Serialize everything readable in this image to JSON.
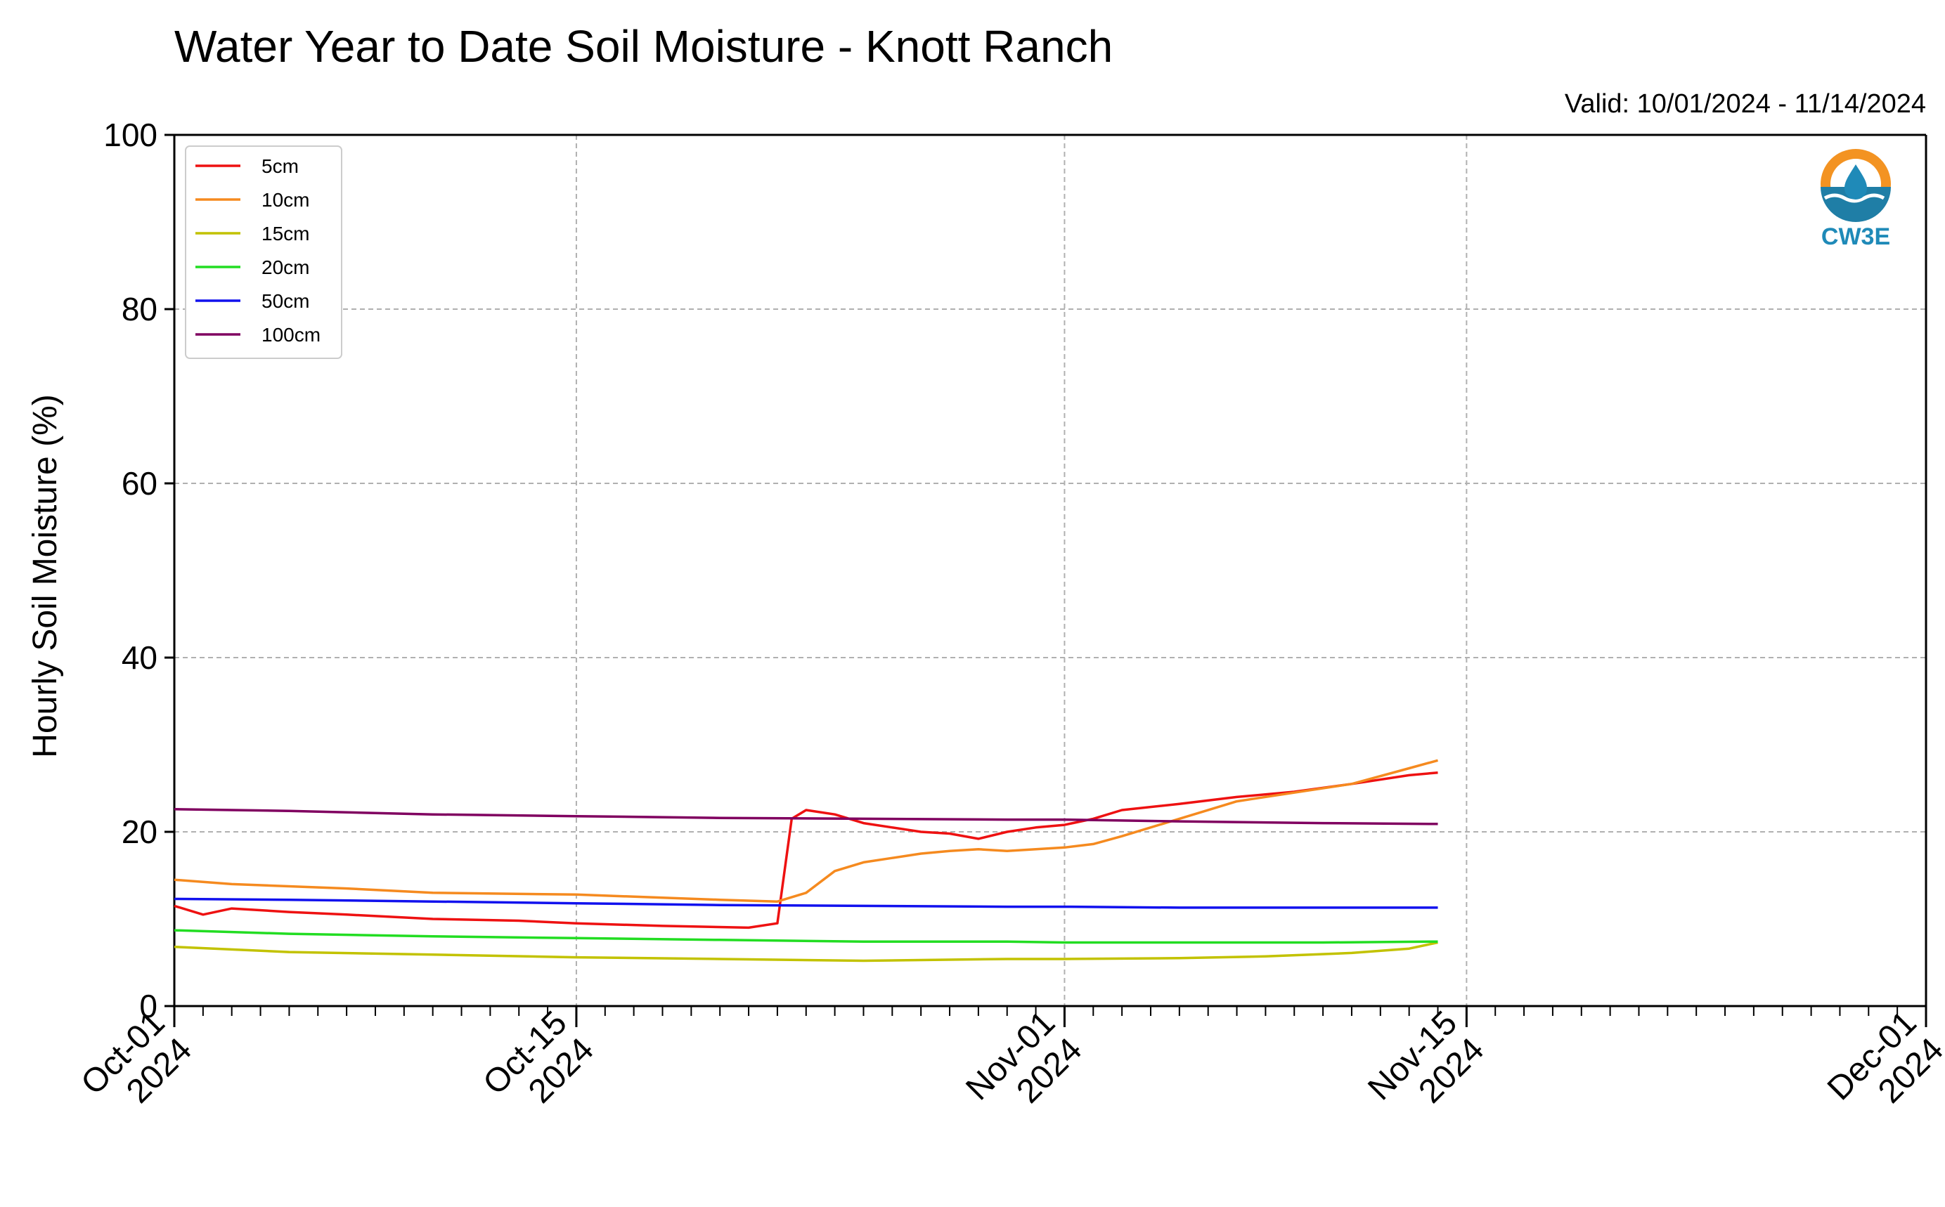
{
  "title": "Water Year to Date Soil Moisture - Knott Ranch",
  "valid_text": "Valid: 10/01/2024 - 11/14/2024",
  "logo_text": "CW3E",
  "chart_data": {
    "type": "line",
    "title": "Water Year to Date Soil Moisture - Knott Ranch",
    "ylabel": "Hourly Soil Moisture (%)",
    "xlabel": "",
    "xlim": [
      "2024-10-01",
      "2024-12-01"
    ],
    "ylim": [
      0,
      100
    ],
    "yticks": [
      0,
      20,
      40,
      60,
      80,
      100
    ],
    "xticks": [
      {
        "date": "2024-10-01",
        "label1": "Oct-01",
        "label2": "2024"
      },
      {
        "date": "2024-10-15",
        "label1": "Oct-15",
        "label2": "2024"
      },
      {
        "date": "2024-11-01",
        "label1": "Nov-01",
        "label2": "2024"
      },
      {
        "date": "2024-11-15",
        "label1": "Nov-15",
        "label2": "2024"
      },
      {
        "date": "2024-12-01",
        "label1": "Dec-01",
        "label2": "2024"
      }
    ],
    "grid": true,
    "legend_position": "top-left",
    "series": [
      {
        "name": "5cm",
        "color": "#ee1111",
        "x": [
          "2024-10-01",
          "2024-10-02",
          "2024-10-03",
          "2024-10-05",
          "2024-10-07",
          "2024-10-10",
          "2024-10-13",
          "2024-10-15",
          "2024-10-18",
          "2024-10-21",
          "2024-10-22",
          "2024-10-22T12:00",
          "2024-10-23",
          "2024-10-24",
          "2024-10-25",
          "2024-10-26",
          "2024-10-27",
          "2024-10-28",
          "2024-10-29",
          "2024-10-30",
          "2024-10-31",
          "2024-11-01",
          "2024-11-02",
          "2024-11-03",
          "2024-11-05",
          "2024-11-07",
          "2024-11-09",
          "2024-11-11",
          "2024-11-13",
          "2024-11-14"
        ],
        "y": [
          11.5,
          10.5,
          11.2,
          10.8,
          10.5,
          10.0,
          9.8,
          9.5,
          9.2,
          9.0,
          9.5,
          21.5,
          22.5,
          22.0,
          21.0,
          20.5,
          20.0,
          19.8,
          19.2,
          20.0,
          20.5,
          20.8,
          21.5,
          22.5,
          23.2,
          24.0,
          24.6,
          25.5,
          26.5,
          26.8
        ]
      },
      {
        "name": "10cm",
        "color": "#f58a1f",
        "x": [
          "2024-10-01",
          "2024-10-03",
          "2024-10-07",
          "2024-10-10",
          "2024-10-15",
          "2024-10-20",
          "2024-10-22",
          "2024-10-23",
          "2024-10-24",
          "2024-10-25",
          "2024-10-26",
          "2024-10-27",
          "2024-10-28",
          "2024-10-29",
          "2024-10-30",
          "2024-10-31",
          "2024-11-01",
          "2024-11-02",
          "2024-11-03",
          "2024-11-05",
          "2024-11-07",
          "2024-11-09",
          "2024-11-11",
          "2024-11-13",
          "2024-11-14"
        ],
        "y": [
          14.5,
          14.0,
          13.5,
          13.0,
          12.8,
          12.2,
          12.0,
          13.0,
          15.5,
          16.5,
          17.0,
          17.5,
          17.8,
          18.0,
          17.8,
          18.0,
          18.2,
          18.6,
          19.5,
          21.5,
          23.5,
          24.5,
          25.5,
          27.3,
          28.2
        ]
      },
      {
        "name": "15cm",
        "color": "#c2c200",
        "x": [
          "2024-10-01",
          "2024-10-05",
          "2024-10-10",
          "2024-10-15",
          "2024-10-20",
          "2024-10-25",
          "2024-10-30",
          "2024-11-01",
          "2024-11-05",
          "2024-11-08",
          "2024-11-11",
          "2024-11-13",
          "2024-11-14"
        ],
        "y": [
          6.8,
          6.2,
          5.9,
          5.6,
          5.4,
          5.2,
          5.4,
          5.4,
          5.5,
          5.7,
          6.1,
          6.6,
          7.3
        ]
      },
      {
        "name": "20cm",
        "color": "#22dd22",
        "x": [
          "2024-10-01",
          "2024-10-05",
          "2024-10-10",
          "2024-10-15",
          "2024-10-20",
          "2024-10-25",
          "2024-10-30",
          "2024-11-01",
          "2024-11-05",
          "2024-11-10",
          "2024-11-14"
        ],
        "y": [
          8.7,
          8.3,
          8.0,
          7.8,
          7.6,
          7.4,
          7.4,
          7.3,
          7.3,
          7.3,
          7.4
        ]
      },
      {
        "name": "50cm",
        "color": "#1111ee",
        "x": [
          "2024-10-01",
          "2024-10-05",
          "2024-10-10",
          "2024-10-15",
          "2024-10-20",
          "2024-10-25",
          "2024-10-30",
          "2024-11-01",
          "2024-11-05",
          "2024-11-10",
          "2024-11-14"
        ],
        "y": [
          12.3,
          12.2,
          12.0,
          11.8,
          11.6,
          11.5,
          11.4,
          11.4,
          11.3,
          11.3,
          11.3
        ]
      },
      {
        "name": "100cm",
        "color": "#800060",
        "x": [
          "2024-10-01",
          "2024-10-05",
          "2024-10-10",
          "2024-10-15",
          "2024-10-20",
          "2024-10-25",
          "2024-10-30",
          "2024-11-01",
          "2024-11-05",
          "2024-11-10",
          "2024-11-14"
        ],
        "y": [
          22.6,
          22.4,
          22.0,
          21.8,
          21.6,
          21.5,
          21.4,
          21.4,
          21.2,
          21.0,
          20.9
        ]
      }
    ]
  }
}
